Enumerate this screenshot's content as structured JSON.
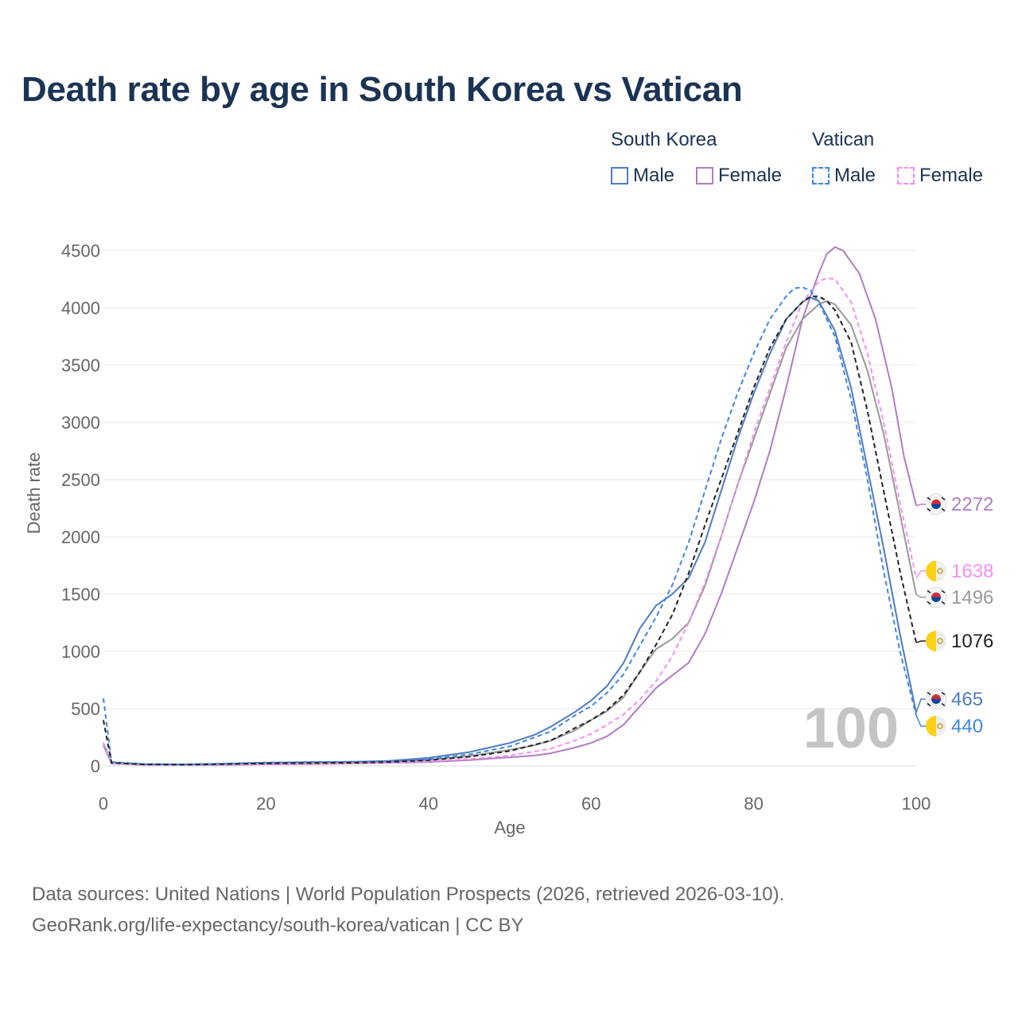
{
  "title": "Death rate by age in South Korea vs Vatican",
  "legend": {
    "groups": [
      {
        "name": "South Korea",
        "items": [
          "Male",
          "Female"
        ]
      },
      {
        "name": "Vatican",
        "items": [
          "Male",
          "Female"
        ]
      }
    ]
  },
  "footer": {
    "line1": "Data sources: United Nations | World Population Prospects (2026, retrieved 2026-03-10).",
    "line2": "GeoRank.org/life-expectancy/south-korea/vatican | CC BY"
  },
  "chart_data": {
    "type": "line",
    "title": "Death rate by age in South Korea vs Vatican",
    "xlabel": "Age",
    "ylabel": "Death rate",
    "xlim": [
      0,
      100
    ],
    "ylim": [
      0,
      4500
    ],
    "xticks": [
      0,
      20,
      40,
      60,
      80,
      100
    ],
    "yticks": [
      0,
      500,
      1000,
      1500,
      2000,
      2500,
      3000,
      3500,
      4000,
      4500
    ],
    "watermark": "100",
    "series": [
      {
        "name": "South Korea Female",
        "country": "South Korea",
        "sex": "Female",
        "color": "#b07cc6",
        "dash": false,
        "end_label": "2272",
        "points": [
          [
            0,
            180
          ],
          [
            1,
            20
          ],
          [
            5,
            10
          ],
          [
            10,
            8
          ],
          [
            15,
            10
          ],
          [
            20,
            14
          ],
          [
            25,
            16
          ],
          [
            30,
            20
          ],
          [
            35,
            26
          ],
          [
            40,
            34
          ],
          [
            45,
            50
          ],
          [
            50,
            75
          ],
          [
            53,
            90
          ],
          [
            55,
            110
          ],
          [
            58,
            160
          ],
          [
            60,
            200
          ],
          [
            62,
            260
          ],
          [
            64,
            360
          ],
          [
            66,
            520
          ],
          [
            68,
            680
          ],
          [
            70,
            790
          ],
          [
            72,
            900
          ],
          [
            74,
            1150
          ],
          [
            76,
            1500
          ],
          [
            78,
            1900
          ],
          [
            80,
            2300
          ],
          [
            82,
            2750
          ],
          [
            84,
            3300
          ],
          [
            86,
            3900
          ],
          [
            88,
            4300
          ],
          [
            89,
            4470
          ],
          [
            90,
            4530
          ],
          [
            91,
            4500
          ],
          [
            93,
            4300
          ],
          [
            95,
            3900
          ],
          [
            97,
            3300
          ],
          [
            98.5,
            2700
          ],
          [
            100,
            2272
          ]
        ]
      },
      {
        "name": "South Korea Male",
        "country": "South Korea",
        "sex": "Male",
        "color": "#4e7bc3",
        "dash": false,
        "end_label": "465",
        "points": [
          [
            0,
            200
          ],
          [
            1,
            25
          ],
          [
            5,
            14
          ],
          [
            10,
            12
          ],
          [
            15,
            18
          ],
          [
            20,
            28
          ],
          [
            25,
            32
          ],
          [
            30,
            34
          ],
          [
            35,
            44
          ],
          [
            40,
            70
          ],
          [
            45,
            120
          ],
          [
            50,
            200
          ],
          [
            53,
            270
          ],
          [
            55,
            340
          ],
          [
            58,
            470
          ],
          [
            60,
            570
          ],
          [
            62,
            700
          ],
          [
            64,
            900
          ],
          [
            66,
            1200
          ],
          [
            68,
            1400
          ],
          [
            70,
            1500
          ],
          [
            72,
            1640
          ],
          [
            74,
            1950
          ],
          [
            76,
            2400
          ],
          [
            78,
            2850
          ],
          [
            80,
            3250
          ],
          [
            82,
            3600
          ],
          [
            84,
            3900
          ],
          [
            86,
            4050
          ],
          [
            87,
            4090
          ],
          [
            88,
            4060
          ],
          [
            90,
            3800
          ],
          [
            92,
            3300
          ],
          [
            94,
            2600
          ],
          [
            96,
            1900
          ],
          [
            98,
            1150
          ],
          [
            100,
            465
          ]
        ]
      },
      {
        "name": "South Korea Total",
        "country": "South Korea",
        "sex": "Total",
        "color": "#999999",
        "dash": false,
        "end_label": "1496",
        "points": [
          [
            0,
            190
          ],
          [
            1,
            22
          ],
          [
            5,
            12
          ],
          [
            10,
            10
          ],
          [
            15,
            14
          ],
          [
            20,
            20
          ],
          [
            25,
            24
          ],
          [
            30,
            27
          ],
          [
            35,
            35
          ],
          [
            40,
            52
          ],
          [
            45,
            85
          ],
          [
            50,
            140
          ],
          [
            53,
            180
          ],
          [
            55,
            220
          ],
          [
            58,
            310
          ],
          [
            60,
            400
          ],
          [
            62,
            480
          ],
          [
            64,
            600
          ],
          [
            66,
            820
          ],
          [
            68,
            1020
          ],
          [
            70,
            1110
          ],
          [
            72,
            1250
          ],
          [
            74,
            1570
          ],
          [
            76,
            2000
          ],
          [
            78,
            2450
          ],
          [
            80,
            2850
          ],
          [
            82,
            3250
          ],
          [
            84,
            3650
          ],
          [
            86,
            3900
          ],
          [
            88,
            4030
          ],
          [
            89,
            4060
          ],
          [
            90,
            4030
          ],
          [
            92,
            3850
          ],
          [
            94,
            3450
          ],
          [
            96,
            2900
          ],
          [
            98,
            2200
          ],
          [
            100,
            1496
          ]
        ]
      },
      {
        "name": "Vatican Female",
        "country": "Vatican",
        "sex": "Female",
        "color": "#f68ff0",
        "dash": true,
        "end_label": "1638",
        "points": [
          [
            0,
            200
          ],
          [
            1,
            22
          ],
          [
            5,
            12
          ],
          [
            10,
            10
          ],
          [
            15,
            12
          ],
          [
            20,
            14
          ],
          [
            25,
            16
          ],
          [
            30,
            20
          ],
          [
            35,
            26
          ],
          [
            40,
            40
          ],
          [
            45,
            60
          ],
          [
            50,
            90
          ],
          [
            55,
            150
          ],
          [
            58,
            220
          ],
          [
            60,
            280
          ],
          [
            62,
            360
          ],
          [
            64,
            450
          ],
          [
            66,
            580
          ],
          [
            68,
            740
          ],
          [
            70,
            960
          ],
          [
            72,
            1250
          ],
          [
            74,
            1600
          ],
          [
            76,
            2000
          ],
          [
            78,
            2450
          ],
          [
            80,
            2900
          ],
          [
            82,
            3300
          ],
          [
            84,
            3700
          ],
          [
            86,
            4050
          ],
          [
            88,
            4230
          ],
          [
            89,
            4260
          ],
          [
            90,
            4250
          ],
          [
            92,
            4050
          ],
          [
            94,
            3600
          ],
          [
            96,
            3000
          ],
          [
            98,
            2300
          ],
          [
            100,
            1638
          ]
        ]
      },
      {
        "name": "Vatican Male",
        "country": "Vatican",
        "sex": "Male",
        "color": "#3d87e4",
        "dash": true,
        "end_label": "440",
        "points": [
          [
            0,
            590
          ],
          [
            1,
            35
          ],
          [
            5,
            16
          ],
          [
            10,
            13
          ],
          [
            15,
            20
          ],
          [
            20,
            30
          ],
          [
            25,
            33
          ],
          [
            30,
            36
          ],
          [
            35,
            42
          ],
          [
            40,
            60
          ],
          [
            45,
            100
          ],
          [
            50,
            170
          ],
          [
            55,
            300
          ],
          [
            58,
            440
          ],
          [
            60,
            520
          ],
          [
            62,
            640
          ],
          [
            64,
            800
          ],
          [
            66,
            1050
          ],
          [
            68,
            1300
          ],
          [
            70,
            1580
          ],
          [
            72,
            1950
          ],
          [
            74,
            2400
          ],
          [
            76,
            2850
          ],
          [
            78,
            3250
          ],
          [
            80,
            3600
          ],
          [
            82,
            3900
          ],
          [
            84,
            4100
          ],
          [
            85,
            4170
          ],
          [
            86,
            4180
          ],
          [
            87,
            4150
          ],
          [
            88,
            4050
          ],
          [
            90,
            3750
          ],
          [
            92,
            3200
          ],
          [
            94,
            2500
          ],
          [
            96,
            1700
          ],
          [
            98,
            1000
          ],
          [
            100,
            440
          ]
        ]
      },
      {
        "name": "Vatican Total",
        "country": "Vatican",
        "sex": "Total",
        "color": "#222222",
        "dash": true,
        "end_label": "1076",
        "points": [
          [
            0,
            400
          ],
          [
            1,
            28
          ],
          [
            5,
            14
          ],
          [
            10,
            11
          ],
          [
            15,
            16
          ],
          [
            20,
            22
          ],
          [
            25,
            25
          ],
          [
            30,
            28
          ],
          [
            35,
            34
          ],
          [
            40,
            50
          ],
          [
            45,
            80
          ],
          [
            50,
            130
          ],
          [
            55,
            220
          ],
          [
            58,
            330
          ],
          [
            60,
            400
          ],
          [
            62,
            490
          ],
          [
            64,
            620
          ],
          [
            66,
            820
          ],
          [
            68,
            1060
          ],
          [
            70,
            1320
          ],
          [
            72,
            1680
          ],
          [
            74,
            2100
          ],
          [
            76,
            2500
          ],
          [
            78,
            2900
          ],
          [
            80,
            3300
          ],
          [
            82,
            3650
          ],
          [
            84,
            3900
          ],
          [
            86,
            4050
          ],
          [
            87,
            4100
          ],
          [
            88,
            4100
          ],
          [
            89,
            4060
          ],
          [
            90,
            3980
          ],
          [
            92,
            3700
          ],
          [
            94,
            3100
          ],
          [
            96,
            2400
          ],
          [
            98,
            1700
          ],
          [
            100,
            1076
          ]
        ]
      }
    ],
    "end_labels": [
      {
        "value": "2272",
        "flag": "south-korea",
        "color": "#b07cc6",
        "series_end": 2272
      },
      {
        "value": "1638",
        "flag": "vatican",
        "color": "#f68ff0",
        "series_end": 1638
      },
      {
        "value": "1496",
        "flag": "south-korea",
        "color": "#999999",
        "series_end": 1496
      },
      {
        "value": "1076",
        "flag": "vatican",
        "color": "#222222",
        "series_end": 1076
      },
      {
        "value": "465",
        "flag": "south-korea",
        "color": "#4e7bc3",
        "series_end": 465
      },
      {
        "value": "440",
        "flag": "vatican",
        "color": "#3d87e4",
        "series_end": 440
      }
    ]
  }
}
